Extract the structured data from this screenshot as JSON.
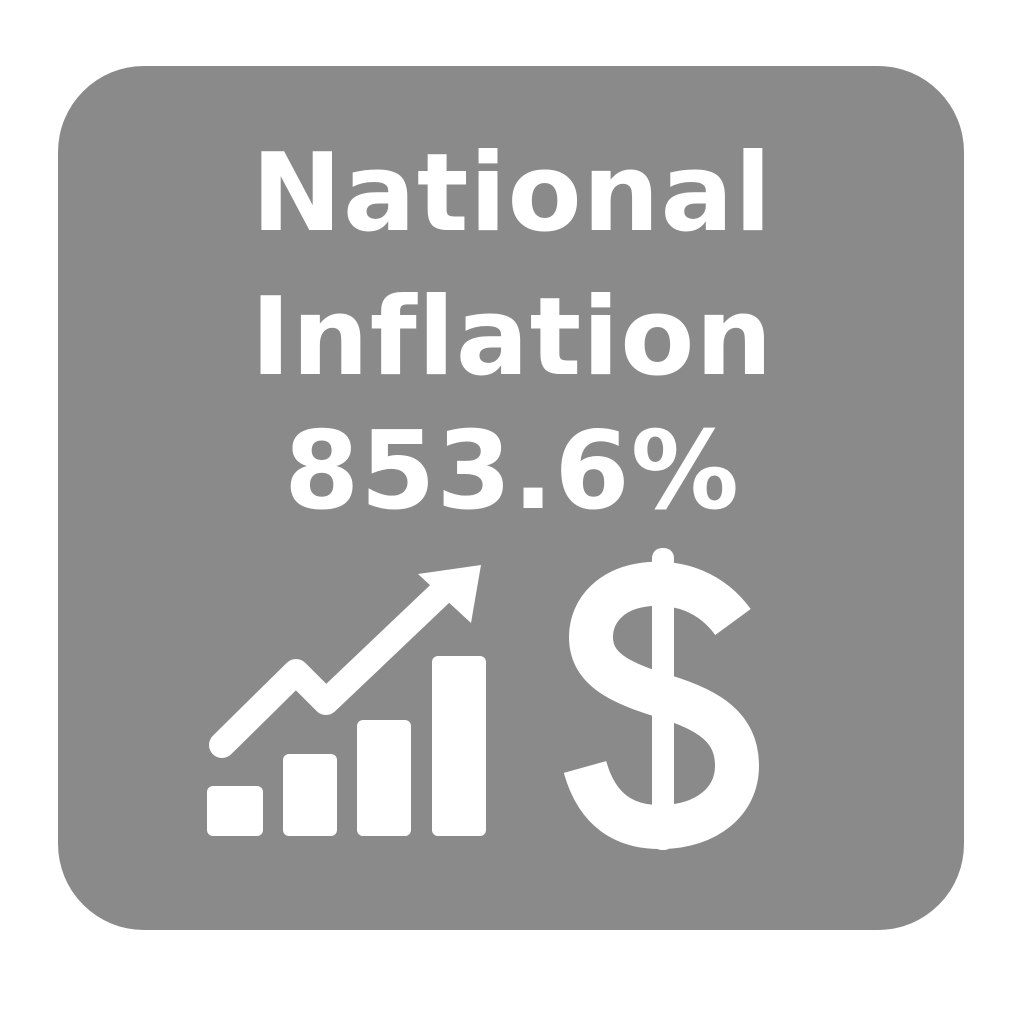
{
  "card": {
    "line1": "National",
    "line2": "Inflation",
    "value": "853.6%"
  },
  "colors": {
    "background": "#ffffff",
    "tile": "#8a8a8a",
    "foreground": "#ffffff"
  },
  "icons": [
    "rising-bar-chart-icon",
    "dollar-sign-icon"
  ]
}
